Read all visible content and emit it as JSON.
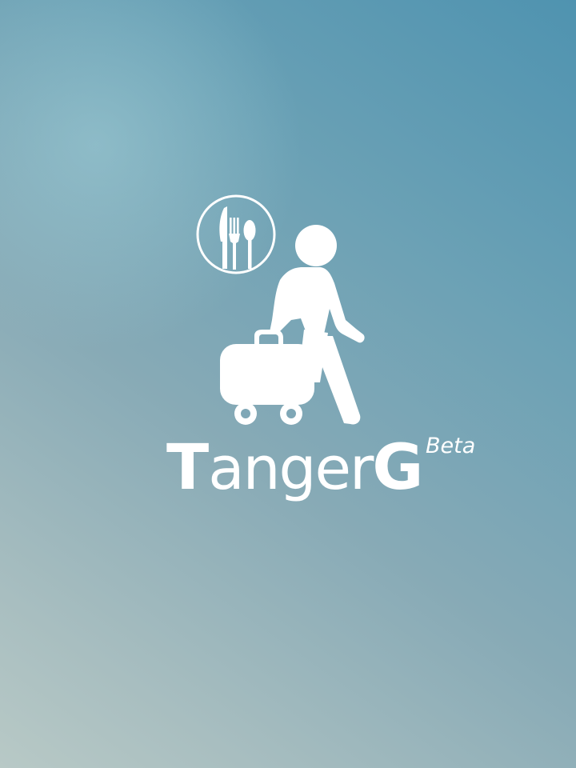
{
  "app": {
    "name_first_letter": "T",
    "name_middle": "anger",
    "name_last_letter": "G",
    "badge": "Beta"
  },
  "logo": {
    "icons": [
      "cutlery-circle-icon",
      "walking-person-icon",
      "luggage-cart-icon"
    ],
    "color": "#ffffff"
  },
  "theme": {
    "gradient_start": "#4f93b0",
    "gradient_end": "#b8c9c6"
  }
}
